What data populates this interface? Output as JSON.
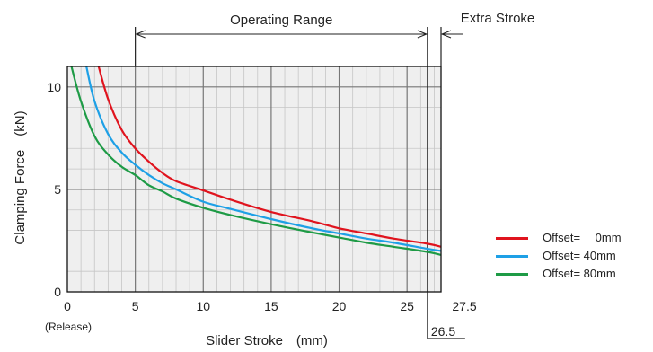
{
  "chart_data": {
    "type": "line",
    "xlabel": "Slider Stroke　(mm)",
    "ylabel": "Clamping Force　(kN)",
    "xlim": [
      0,
      27.5
    ],
    "ylim": [
      0,
      11
    ],
    "x_ticks": [
      0,
      5,
      10,
      15,
      20,
      25
    ],
    "x_tick_labels": [
      "0",
      "5",
      "10",
      "15",
      "20",
      "25"
    ],
    "y_ticks": [
      0,
      5,
      10
    ],
    "y_tick_labels": [
      "0",
      "5",
      "10"
    ],
    "x_minor_step": 1,
    "y_minor_step": 1,
    "grid": true,
    "legend_position": "right",
    "annotations": {
      "release_label": "(Release)",
      "operating_range_label": "Operating Range",
      "operating_range": [
        5,
        26.5
      ],
      "extra_stroke_label": "Extra Stroke",
      "extra_stroke": [
        26.5,
        27.5
      ],
      "end_marker_label": "26.5",
      "end_marker_x": 26.5,
      "right_edge_label": "27.5"
    },
    "series": [
      {
        "name": "Offset=　 0mm",
        "color": "#e0141e",
        "x": [
          2.3,
          3,
          4,
          5,
          6,
          7,
          8,
          10,
          12,
          15,
          18,
          20,
          22,
          24,
          26.5,
          27.5
        ],
        "y": [
          11,
          9.4,
          7.9,
          7.0,
          6.35,
          5.8,
          5.4,
          4.95,
          4.5,
          3.9,
          3.45,
          3.1,
          2.85,
          2.6,
          2.35,
          2.2
        ]
      },
      {
        "name": "Offset= 40mm",
        "color": "#1ea0e6",
        "x": [
          1.4,
          2,
          3,
          4,
          5,
          6,
          7,
          8,
          10,
          12,
          15,
          18,
          20,
          22,
          24,
          26.5,
          27.5
        ],
        "y": [
          11,
          9.3,
          7.7,
          6.8,
          6.2,
          5.7,
          5.3,
          5.0,
          4.4,
          4.05,
          3.55,
          3.1,
          2.85,
          2.6,
          2.4,
          2.1,
          2.0
        ]
      },
      {
        "name": "Offset= 80mm",
        "color": "#1e9b46",
        "x": [
          0.3,
          1,
          2,
          3,
          4,
          5,
          6,
          7,
          8,
          10,
          12,
          15,
          18,
          20,
          22,
          24,
          26.5,
          27.5
        ],
        "y": [
          11,
          9.3,
          7.6,
          6.7,
          6.1,
          5.7,
          5.2,
          4.9,
          4.55,
          4.1,
          3.75,
          3.3,
          2.9,
          2.65,
          2.4,
          2.2,
          1.95,
          1.8
        ]
      }
    ]
  }
}
